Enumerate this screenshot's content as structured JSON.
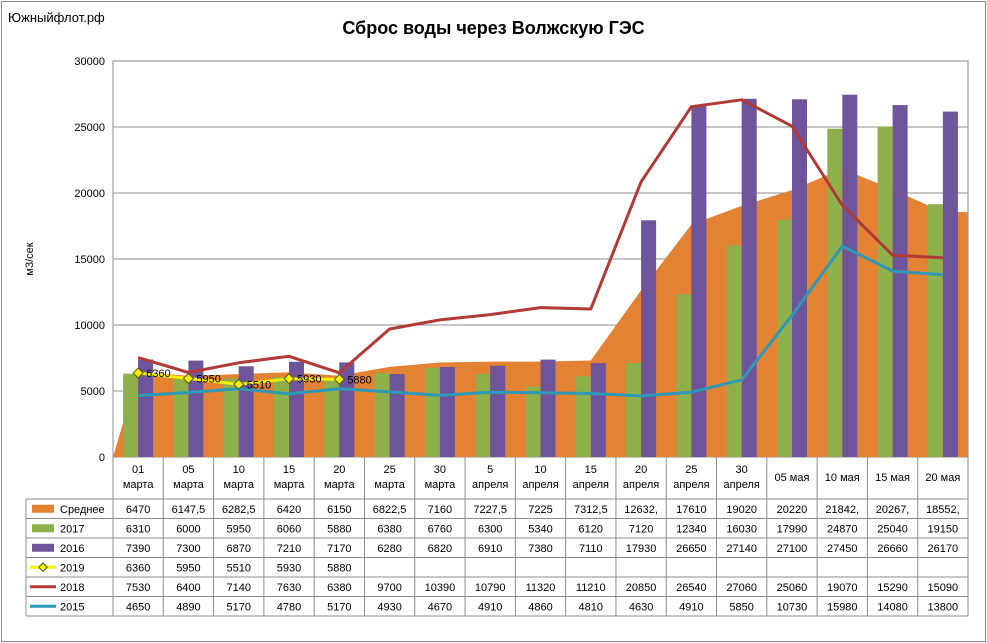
{
  "site_label": "Южныйфлот.рф",
  "chart_data": {
    "type": "bar",
    "title": "Сброс воды через Волжскую ГЭС",
    "ylabel": "м3/сек",
    "xlabel": "",
    "ylim": [
      0,
      30000
    ],
    "yticks": [
      "0",
      "5000",
      "10000",
      "15000",
      "20000",
      "25000",
      "30000"
    ],
    "grid": true,
    "legend": "table-below",
    "categories": [
      [
        "01",
        "марта"
      ],
      [
        "05",
        "марта"
      ],
      [
        "10",
        "марта"
      ],
      [
        "15",
        "марта"
      ],
      [
        "20",
        "марта"
      ],
      [
        "25",
        "марта"
      ],
      [
        "30",
        "марта"
      ],
      [
        "5",
        "апреля"
      ],
      [
        "10",
        "апреля"
      ],
      [
        "15",
        "апреля"
      ],
      [
        "20",
        "апреля"
      ],
      [
        "25",
        "апреля"
      ],
      [
        "30",
        "апреля"
      ],
      [
        "05 мая",
        ""
      ],
      [
        "10 мая",
        ""
      ],
      [
        "15 мая",
        ""
      ],
      [
        "20 мая",
        ""
      ]
    ],
    "series": [
      {
        "name": "Среднее",
        "kind": "area",
        "color": "#e38232",
        "values": [
          6470,
          6147.5,
          6282.5,
          6420,
          6150,
          6822.5,
          7160,
          7227.5,
          7225,
          7312.5,
          12632,
          17610,
          19020,
          20220,
          21842,
          20267,
          18552
        ],
        "labels": [
          "6470",
          "6147,5",
          "6282,5",
          "6420",
          "6150",
          "6822,5",
          "7160",
          "7227,5",
          "7225",
          "7312,5",
          "12632,",
          "17610",
          "19020",
          "20220",
          "21842,",
          "20267,",
          "18552,"
        ]
      },
      {
        "name": "2017",
        "kind": "bar",
        "color": "#8faf4a",
        "values": [
          6310,
          6000,
          5950,
          6060,
          5880,
          6380,
          6760,
          6300,
          5340,
          6120,
          7120,
          12340,
          16030,
          17990,
          24870,
          25040,
          19150
        ],
        "labels": [
          "6310",
          "6000",
          "5950",
          "6060",
          "5880",
          "6380",
          "6760",
          "6300",
          "5340",
          "6120",
          "7120",
          "12340",
          "16030",
          "17990",
          "24870",
          "25040",
          "19150"
        ]
      },
      {
        "name": "2016",
        "kind": "bar",
        "color": "#6e549a",
        "values": [
          7390,
          7300,
          6870,
          7210,
          7170,
          6280,
          6820,
          6910,
          7380,
          7110,
          17930,
          26650,
          27140,
          27100,
          27450,
          26660,
          26170
        ],
        "labels": [
          "7390",
          "7300",
          "6870",
          "7210",
          "7170",
          "6280",
          "6820",
          "6910",
          "7380",
          "7110",
          "17930",
          "26650",
          "27140",
          "27100",
          "27450",
          "26660",
          "26170"
        ]
      },
      {
        "name": "2019",
        "kind": "marker-line",
        "color": "#f5f000",
        "values": [
          6360,
          5950,
          5510,
          5930,
          5880,
          null,
          null,
          null,
          null,
          null,
          null,
          null,
          null,
          null,
          null,
          null,
          null
        ],
        "labels": [
          "6360",
          "5950",
          "5510",
          "5930",
          "5880",
          "",
          "",
          "",
          "",
          "",
          "",
          "",
          "",
          "",
          "",
          "",
          ""
        ]
      },
      {
        "name": "2018",
        "kind": "line",
        "color": "#b23a36",
        "values": [
          7530,
          6400,
          7140,
          7630,
          6380,
          9700,
          10390,
          10790,
          11320,
          11210,
          20850,
          26540,
          27060,
          25060,
          19070,
          15290,
          15090
        ],
        "labels": [
          "7530",
          "6400",
          "7140",
          "7630",
          "6380",
          "9700",
          "10390",
          "10790",
          "11320",
          "11210",
          "20850",
          "26540",
          "27060",
          "25060",
          "19070",
          "15290",
          "15090"
        ]
      },
      {
        "name": "2015",
        "kind": "line",
        "color": "#2f98b5",
        "values": [
          4650,
          4890,
          5170,
          4780,
          5170,
          4930,
          4670,
          4910,
          4860,
          4810,
          4630,
          4910,
          5850,
          10730,
          15980,
          14080,
          13800
        ],
        "labels": [
          "4650",
          "4890",
          "5170",
          "4780",
          "5170",
          "4930",
          "4670",
          "4910",
          "4860",
          "4810",
          "4630",
          "4910",
          "5850",
          "10730",
          "15980",
          "14080",
          "13800"
        ]
      }
    ]
  }
}
